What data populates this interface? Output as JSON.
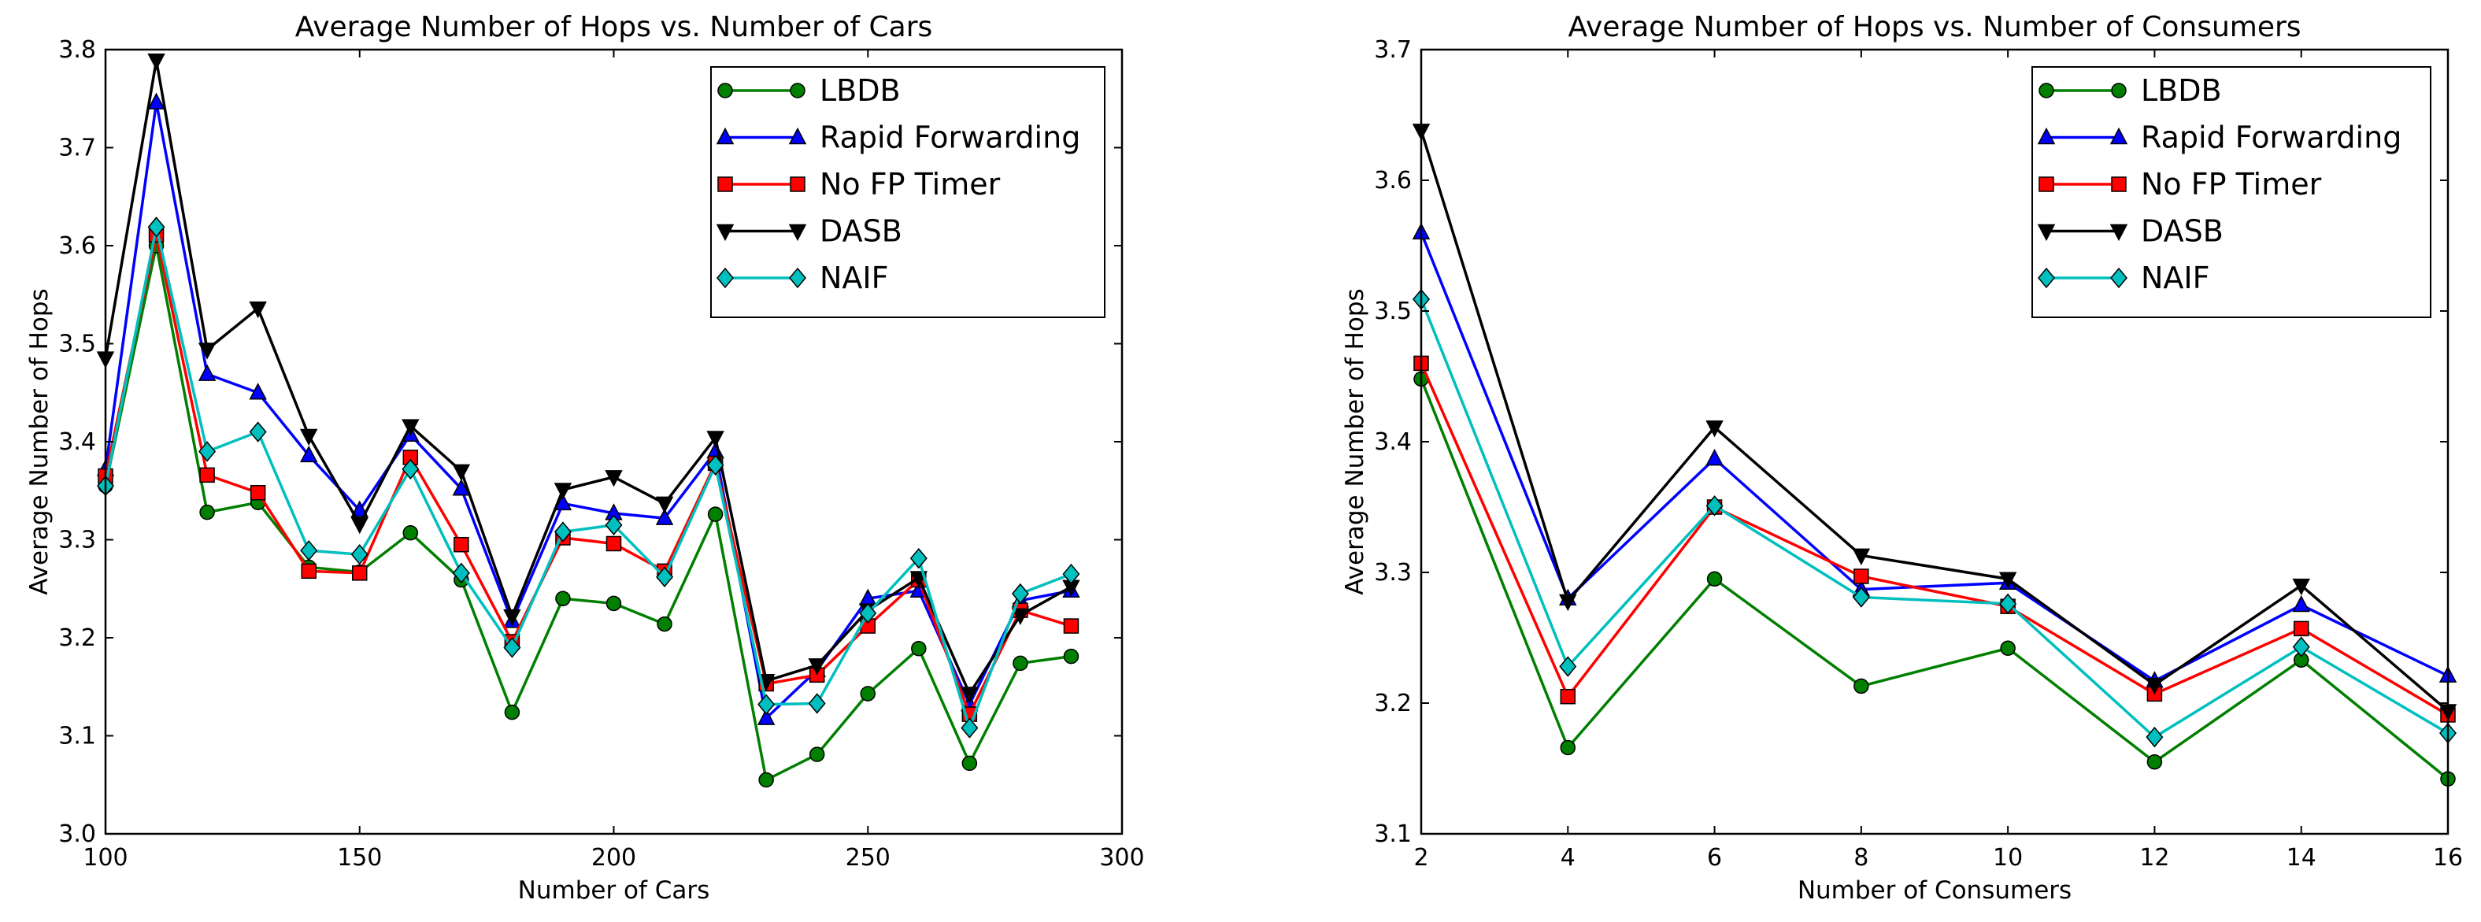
{
  "chart_data": [
    {
      "type": "line",
      "title": "Average Number of Hops vs. Number of Cars",
      "xlabel": "Number of Cars",
      "ylabel": "Average Number of Hops",
      "xlim": [
        100,
        300
      ],
      "ylim": [
        3.0,
        3.8
      ],
      "xticks": [
        100,
        150,
        200,
        250,
        300
      ],
      "yticks": [
        3.0,
        3.1,
        3.2,
        3.3,
        3.4,
        3.5,
        3.6,
        3.7,
        3.8
      ],
      "ytick_labels": [
        "3.0",
        "3.1",
        "3.2",
        "3.3",
        "3.4",
        "3.5",
        "3.6",
        "3.7",
        "3.8"
      ],
      "legend_position": "top-right",
      "x": [
        100,
        110,
        120,
        130,
        140,
        150,
        160,
        170,
        180,
        190,
        200,
        210,
        220,
        230,
        240,
        250,
        260,
        270,
        280,
        290
      ],
      "series": [
        {
          "name": "LBDB",
          "color": "#007f00",
          "marker": "circle",
          "values": [
            3.355,
            3.6,
            3.328,
            3.338,
            3.272,
            3.267,
            3.307,
            3.259,
            3.124,
            3.24,
            3.235,
            3.214,
            3.326,
            3.055,
            3.081,
            3.143,
            3.189,
            3.072,
            3.174,
            3.181
          ]
        },
        {
          "name": "Rapid Forwarding",
          "color": "#0000ff",
          "marker": "triangle-up",
          "values": [
            3.372,
            3.746,
            3.469,
            3.45,
            3.386,
            3.33,
            3.407,
            3.352,
            3.217,
            3.337,
            3.327,
            3.322,
            3.39,
            3.118,
            3.167,
            3.24,
            3.248,
            3.132,
            3.238,
            3.248
          ]
        },
        {
          "name": "No FP Timer",
          "color": "#ff0000",
          "marker": "square",
          "values": [
            3.365,
            3.611,
            3.366,
            3.348,
            3.268,
            3.266,
            3.384,
            3.295,
            3.196,
            3.302,
            3.296,
            3.268,
            3.378,
            3.153,
            3.162,
            3.212,
            3.259,
            3.122,
            3.228,
            3.212
          ]
        },
        {
          "name": "DASB",
          "color": "#000000",
          "marker": "triangle-down",
          "values": [
            3.485,
            3.789,
            3.494,
            3.536,
            3.406,
            3.316,
            3.416,
            3.37,
            3.222,
            3.351,
            3.364,
            3.337,
            3.404,
            3.156,
            3.172,
            3.228,
            3.261,
            3.143,
            3.223,
            3.252
          ]
        },
        {
          "name": "NAIF",
          "color": "#00bfbf",
          "marker": "diamond",
          "values": [
            3.355,
            3.619,
            3.39,
            3.41,
            3.289,
            3.285,
            3.372,
            3.266,
            3.19,
            3.308,
            3.315,
            3.262,
            3.376,
            3.132,
            3.133,
            3.225,
            3.281,
            3.108,
            3.245,
            3.265
          ]
        }
      ]
    },
    {
      "type": "line",
      "title": "Average Number of Hops vs. Number of Consumers",
      "xlabel": "Number of Consumers",
      "ylabel": "Average Number of Hops",
      "xlim": [
        2,
        16
      ],
      "ylim": [
        3.1,
        3.7
      ],
      "xticks": [
        2,
        4,
        6,
        8,
        10,
        12,
        14,
        16
      ],
      "yticks": [
        3.1,
        3.2,
        3.3,
        3.4,
        3.5,
        3.6,
        3.7
      ],
      "ytick_labels": [
        "3.1",
        "3.2",
        "3.3",
        "3.4",
        "3.5",
        "3.6",
        "3.7"
      ],
      "legend_position": "top-right",
      "x": [
        2,
        4,
        6,
        8,
        10,
        12,
        14,
        16
      ],
      "series": [
        {
          "name": "LBDB",
          "color": "#007f00",
          "marker": "circle",
          "values": [
            3.448,
            3.166,
            3.295,
            3.213,
            3.242,
            3.155,
            3.233,
            3.142
          ]
        },
        {
          "name": "Rapid Forwarding",
          "color": "#0000ff",
          "marker": "triangle-up",
          "values": [
            3.56,
            3.28,
            3.387,
            3.287,
            3.292,
            3.217,
            3.275,
            3.221
          ]
        },
        {
          "name": "No FP Timer",
          "color": "#ff0000",
          "marker": "square",
          "values": [
            3.46,
            3.205,
            3.35,
            3.297,
            3.274,
            3.207,
            3.257,
            3.191
          ]
        },
        {
          "name": "DASB",
          "color": "#000000",
          "marker": "triangle-down",
          "values": [
            3.638,
            3.278,
            3.411,
            3.313,
            3.295,
            3.214,
            3.29,
            3.194
          ]
        },
        {
          "name": "NAIF",
          "color": "#00bfbf",
          "marker": "diamond",
          "values": [
            3.509,
            3.228,
            3.351,
            3.281,
            3.276,
            3.174,
            3.243,
            3.177
          ]
        }
      ]
    }
  ]
}
